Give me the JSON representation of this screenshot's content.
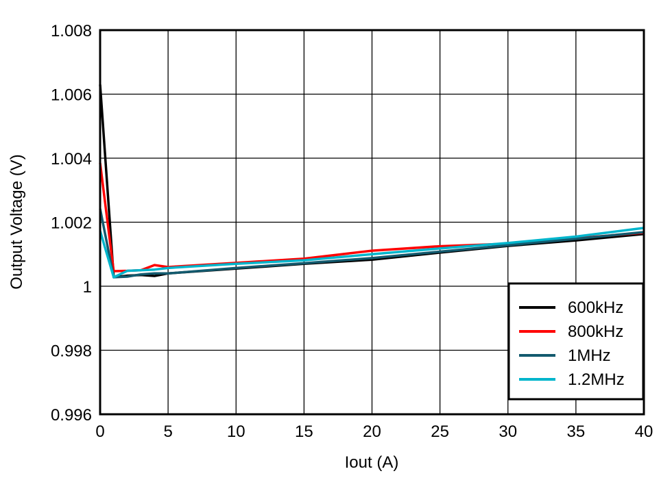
{
  "chart_data": {
    "type": "line",
    "title": "",
    "xlabel": "Iout (A)",
    "ylabel": "Output Voltage (V)",
    "xlim": [
      0,
      40
    ],
    "ylim": [
      0.996,
      1.008
    ],
    "xticks": [
      0,
      5,
      10,
      15,
      20,
      25,
      30,
      35,
      40
    ],
    "xtick_labels": [
      "0",
      "5",
      "10",
      "15",
      "20",
      "25",
      "30",
      "35",
      "40"
    ],
    "yticks": [
      0.996,
      0.998,
      1.0,
      1.002,
      1.004,
      1.006,
      1.008
    ],
    "ytick_labels": [
      "0.996",
      "0.998",
      "1",
      "1.002",
      "1.004",
      "1.006",
      "1.008"
    ],
    "grid": true,
    "legend_position": "bottom-right",
    "x": [
      0,
      1,
      2,
      3,
      4,
      5,
      10,
      15,
      20,
      25,
      30,
      35,
      40
    ],
    "series": [
      {
        "name": "600kHz",
        "color": "#000000",
        "values": [
          1.0063,
          1.00028,
          1.00033,
          1.00035,
          1.00032,
          1.0004,
          1.00055,
          1.0007,
          1.00083,
          1.00105,
          1.00126,
          1.00143,
          1.00163
        ]
      },
      {
        "name": "800kHz",
        "color": "#ff0000",
        "values": [
          1.00385,
          1.00047,
          1.00048,
          1.0005,
          1.00066,
          1.0006,
          1.00073,
          1.00086,
          1.00111,
          1.00125,
          1.00133,
          1.0015,
          1.00167
        ]
      },
      {
        "name": "1MHz",
        "color": "#135a6e",
        "values": [
          1.00242,
          1.00028,
          1.0003,
          1.00037,
          1.0004,
          1.0004,
          1.00057,
          1.00072,
          1.00088,
          1.00108,
          1.00128,
          1.00148,
          1.00169
        ]
      },
      {
        "name": "1.2MHz",
        "color": "#00b5cc",
        "values": [
          1.00173,
          1.00028,
          1.00048,
          1.0005,
          1.00052,
          1.00057,
          1.0007,
          1.00081,
          1.001,
          1.00118,
          1.00135,
          1.00155,
          1.00182
        ]
      }
    ]
  }
}
